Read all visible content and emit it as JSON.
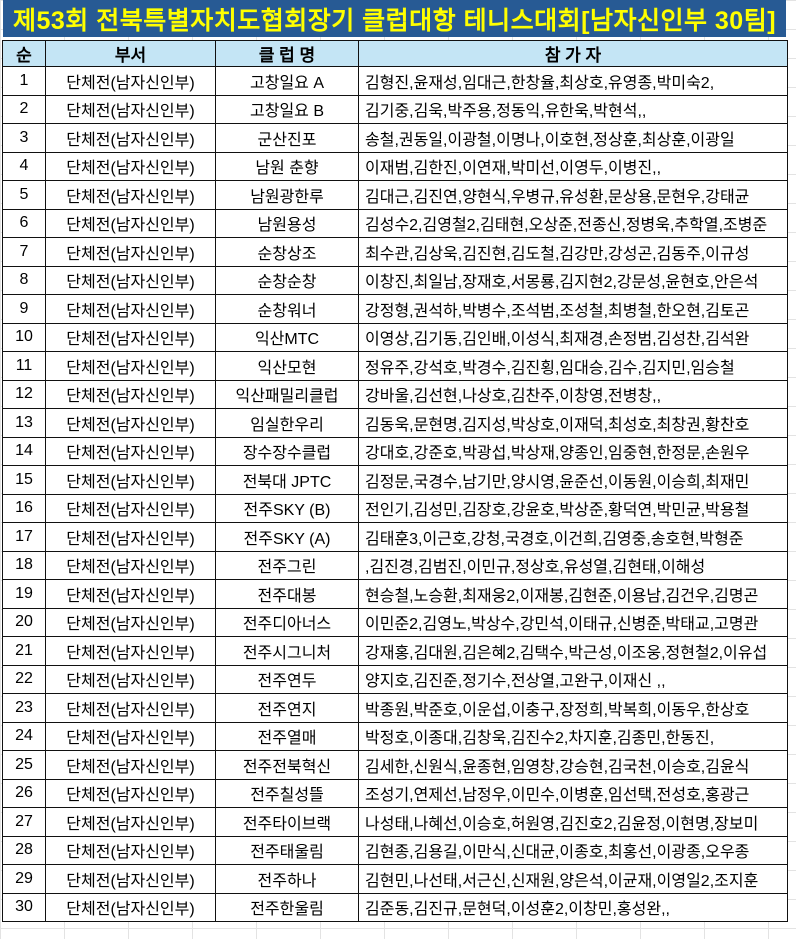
{
  "title": "제53회 전북특별자치도협회장기 클럽대항 테니스대회[남자신인부 30팀]",
  "colors": {
    "title_bg": "#275a94",
    "title_text": "#ffff00",
    "header_bg": "#c4e5f5"
  },
  "headers": {
    "no": "순",
    "division": "부서",
    "club": "클 럽 명",
    "participants": "참 가 자"
  },
  "rows": [
    {
      "no": "1",
      "division": "단체전(남자신인부)",
      "club": "고창일요 A",
      "participants": "김형진,윤재성,임대근,한창율,최상호,유영종,박미숙2,"
    },
    {
      "no": "2",
      "division": "단체전(남자신인부)",
      "club": "고창일요 B",
      "participants": "김기중,김욱,박주용,정동익,유한욱,박현석,,"
    },
    {
      "no": "3",
      "division": "단체전(남자신인부)",
      "club": "군산진포",
      "participants": "송철,권동일,이광철,이명나,이호현,정상훈,최상훈,이광일"
    },
    {
      "no": "4",
      "division": "단체전(남자신인부)",
      "club": "남원 춘향",
      "participants": "이재범,김한진,이연재,박미선,이영두,이병진,,"
    },
    {
      "no": "5",
      "division": "단체전(남자신인부)",
      "club": "남원광한루",
      "participants": "김대근,김진연,양현식,우병규,유성환,문상용,문현우,강태균"
    },
    {
      "no": "6",
      "division": "단체전(남자신인부)",
      "club": "남원용성",
      "participants": "김성수2,김영철2,김태현,오상준,전종신,정병욱,추학열,조병준"
    },
    {
      "no": "7",
      "division": "단체전(남자신인부)",
      "club": "순창상조",
      "participants": "최수관,김상욱,김진현,김도철,김강만,강성곤,김동주,이규성"
    },
    {
      "no": "8",
      "division": "단체전(남자신인부)",
      "club": "순창순창",
      "participants": "이창진,최일남,장재호,서몽룡,김지현2,강문성,윤현호,안은석"
    },
    {
      "no": "9",
      "division": "단체전(남자신인부)",
      "club": "순창워너",
      "participants": "강정형,권석하,박병수,조석범,조성철,최병철,한오현,김토곤"
    },
    {
      "no": "10",
      "division": "단체전(남자신인부)",
      "club": "익산MTC",
      "participants": "이영상,김기동,김인배,이성식,최재경,손정범,김성찬,김석완"
    },
    {
      "no": "11",
      "division": "단체전(남자신인부)",
      "club": "익산모현",
      "participants": "정유주,강석호,박경수,김진횡,임대승,김수,김지민,임승철"
    },
    {
      "no": "12",
      "division": "단체전(남자신인부)",
      "club": "익산패밀리클럽",
      "participants": "강바울,김선현,나상호,김찬주,이창영,전병창,,"
    },
    {
      "no": "13",
      "division": "단체전(남자신인부)",
      "club": "임실한우리",
      "participants": "김동욱,문현명,김지성,박상호,이재덕,최성호,최창권,황찬호"
    },
    {
      "no": "14",
      "division": "단체전(남자신인부)",
      "club": "장수장수클럽",
      "participants": "강대호,강준호,박광섭,박상재,양종인,임중현,한정문,손원우"
    },
    {
      "no": "15",
      "division": "단체전(남자신인부)",
      "club": "전북대 JPTC",
      "participants": "김정문,국경수,남기만,양시영,윤준선,이동원,이승희,최재민"
    },
    {
      "no": "16",
      "division": "단체전(남자신인부)",
      "club": "전주SKY (B)",
      "participants": "전인기,김성민,김장호,강윤호,박상준,황덕연,박민균,박용철"
    },
    {
      "no": "17",
      "division": "단체전(남자신인부)",
      "club": "전주SKY (A)",
      "participants": "김태훈3,이근호,강청,국경호,이건희,김영중,송호현,박형준"
    },
    {
      "no": "18",
      "division": "단체전(남자신인부)",
      "club": "전주그린",
      "participants": ",김진경,김범진,이민규,정상호,유성열,김현태,이해성"
    },
    {
      "no": "19",
      "division": "단체전(남자신인부)",
      "club": "전주대봉",
      "participants": "현승철,노승환,최재웅2,이재봉,김현준,이용남,김건우,김명곤"
    },
    {
      "no": "20",
      "division": "단체전(남자신인부)",
      "club": "전주디아너스",
      "participants": "이민준2,김영노,박상수,강민석,이태규,신병준,박태교,고명관"
    },
    {
      "no": "21",
      "division": "단체전(남자신인부)",
      "club": "전주시그니처",
      "participants": "강재홍,김대원,김은혜2,김택수,박근성,이조웅,정현철2,이유섭"
    },
    {
      "no": "22",
      "division": "단체전(남자신인부)",
      "club": "전주연두",
      "participants": "양지호,김진준,정기수,전상열,고완구,이재신 ,,"
    },
    {
      "no": "23",
      "division": "단체전(남자신인부)",
      "club": "전주연지",
      "participants": "박종원,박준호,이운섭,이충구,장정희,박복희,이동우,한상호"
    },
    {
      "no": "24",
      "division": "단체전(남자신인부)",
      "club": "전주열매",
      "participants": "박정호,이종대,김창욱,김진수2,차지훈,김종민,한동진,"
    },
    {
      "no": "25",
      "division": "단체전(남자신인부)",
      "club": "전주전북혁신",
      "participants": "김세한,신원식,윤종현,임영창,강승현,김국천,이승호,김윤식"
    },
    {
      "no": "26",
      "division": "단체전(남자신인부)",
      "club": "전주칠성뜰",
      "participants": "조성기,연제선,남정우,이민수,이병훈,임선택,전성호,홍광근"
    },
    {
      "no": "27",
      "division": "단체전(남자신인부)",
      "club": "전주타이브랙",
      "participants": "나성태,나혜선,이승호,허원영,김진호2,김윤정,이현명,장보미"
    },
    {
      "no": "28",
      "division": "단체전(남자신인부)",
      "club": "전주태울림",
      "participants": "김현종,김용길,이만식,신대균,이종호,최홍선,이광종,오우종"
    },
    {
      "no": "29",
      "division": "단체전(남자신인부)",
      "club": "전주하나",
      "participants": "김현민,나선태,서근신,신재원,양은석,이균재,이영일2,조지훈"
    },
    {
      "no": "30",
      "division": "단체전(남자신인부)",
      "club": "전주한울림",
      "participants": "김준동,김진규,문현덕,이성훈2,이창민,홍성완,,"
    }
  ]
}
